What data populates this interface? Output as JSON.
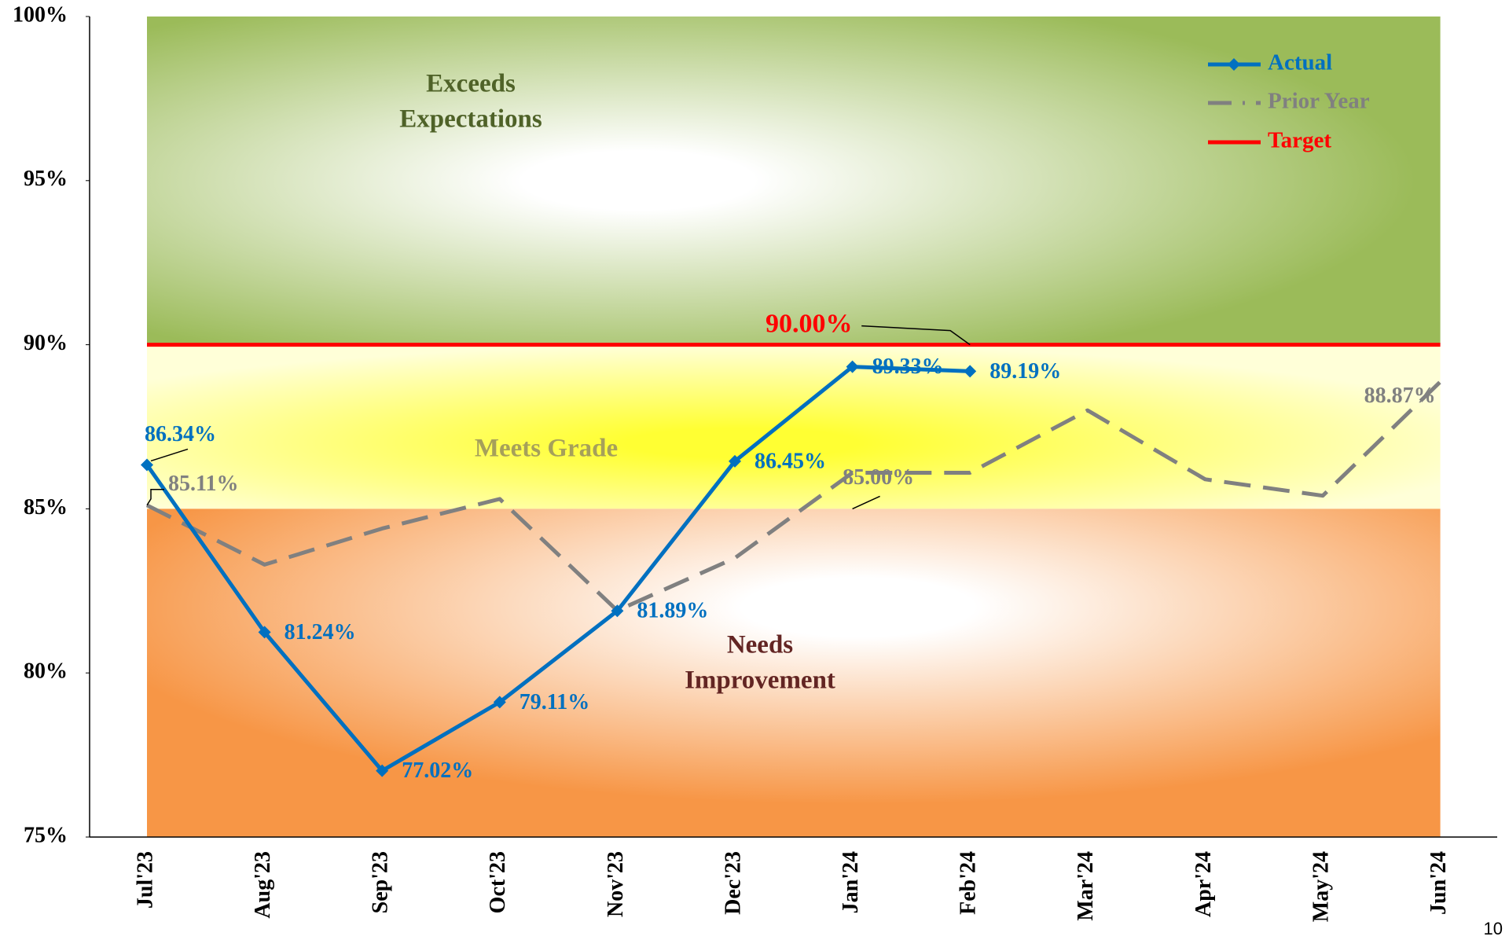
{
  "chart_data": {
    "type": "line",
    "categories": [
      "Jul'23",
      "Aug'23",
      "Sep'23",
      "Oct'23",
      "Nov'23",
      "Dec'23",
      "Jan'24",
      "Feb'24",
      "Mar'24",
      "Apr'24",
      "May'24",
      "Jun'24"
    ],
    "series": [
      {
        "name": "Actual",
        "color": "#0070c0",
        "marker": "diamond",
        "values": [
          86.34,
          81.24,
          77.02,
          79.11,
          81.89,
          86.45,
          89.33,
          89.19,
          null,
          null,
          null,
          null
        ],
        "value_labels": [
          "86.34%",
          "81.24%",
          "77.02%",
          "79.11%",
          "81.89%",
          "86.45%",
          "89.33%",
          "89.19%",
          null,
          null,
          null,
          null
        ]
      },
      {
        "name": "Prior Year",
        "color": "#808080",
        "dash": true,
        "values": [
          85.11,
          83.3,
          84.4,
          85.3,
          81.9,
          83.5,
          86.1,
          86.1,
          88.0,
          85.9,
          85.4,
          88.87
        ],
        "value_labels": [
          "85.11%",
          null,
          null,
          null,
          null,
          null,
          null,
          null,
          null,
          null,
          null,
          "88.87%"
        ]
      },
      {
        "name": "Target",
        "color": "#ff0000",
        "values": [
          90,
          90,
          90,
          90,
          90,
          90,
          90,
          90,
          90,
          90,
          90,
          90
        ],
        "value_labels": [
          null,
          null,
          null,
          null,
          null,
          null,
          null,
          "90.00%",
          null,
          null,
          null,
          null
        ]
      }
    ],
    "bands": [
      {
        "from": 90,
        "to": 100,
        "label": [
          "Exceeds",
          "Expectations"
        ],
        "color": "#9bbb59",
        "center": "#ffffff",
        "text_color": "#4f6228"
      },
      {
        "from": 85,
        "to": 90,
        "label": [
          "Meets Grade"
        ],
        "color": "#ffffd8",
        "center": "#ffff33",
        "text_color": "#a6a05a"
      },
      {
        "from": 75,
        "to": 85,
        "label": [
          "Needs",
          "Improvement"
        ],
        "color": "#f79646",
        "center": "#ffffff",
        "text_color": "#632523"
      }
    ],
    "threshold": {
      "value": 85,
      "label": "85.00%",
      "category": 6
    },
    "ylim": [
      75,
      100
    ],
    "yticks": [
      {
        "value": 75,
        "label": "75%"
      },
      {
        "value": 80,
        "label": "80%"
      },
      {
        "value": 85,
        "label": "85%"
      },
      {
        "value": 90,
        "label": "90%"
      },
      {
        "value": 95,
        "label": "95%"
      },
      {
        "value": 100,
        "label": "100%"
      }
    ],
    "legend": "upper right",
    "page_number": "10"
  }
}
